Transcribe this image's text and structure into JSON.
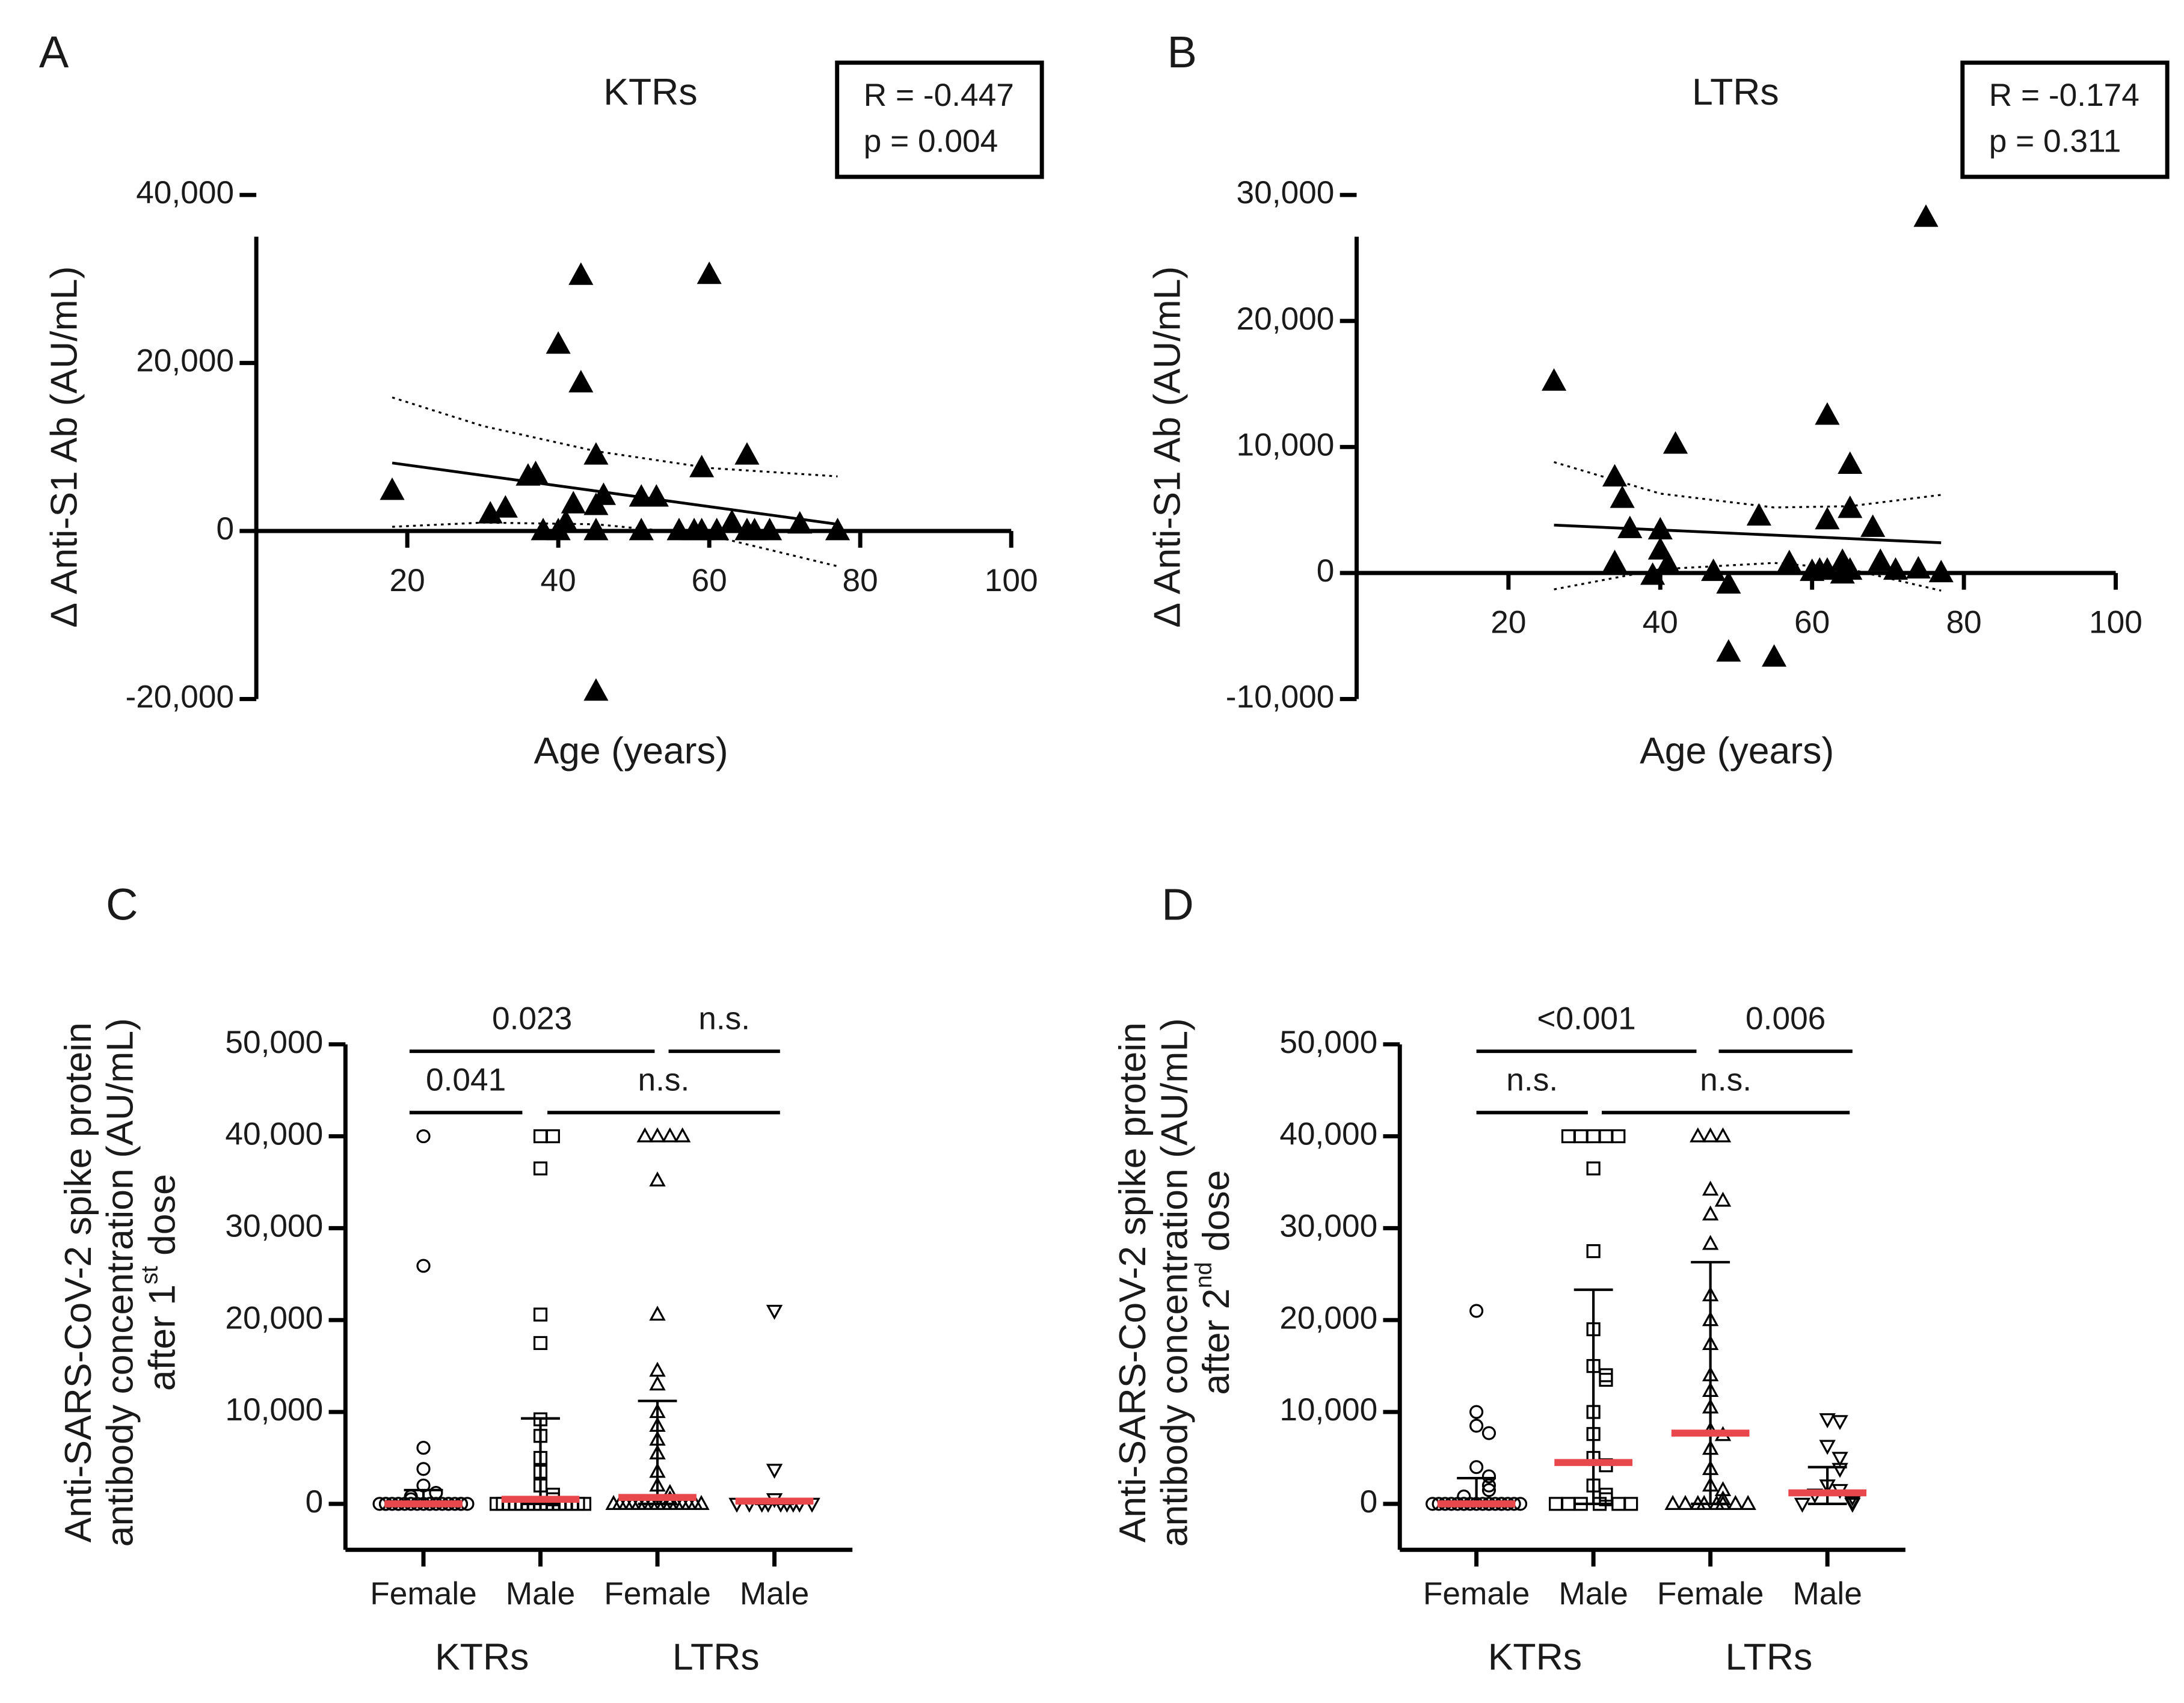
{
  "chart_data": [
    {
      "type": "scatter",
      "panel": "A",
      "title": "KTRs",
      "annotation": [
        "R = -0.447",
        "p = 0.004"
      ],
      "xlabel": "Age (years)",
      "ylabel": "Δ Anti-S1 Ab (AU/mL)",
      "xlim": [
        0,
        100
      ],
      "xticks": [
        20,
        40,
        60,
        80,
        100
      ],
      "ylim": [
        -20000,
        40000
      ],
      "yticks": [
        {
          "value": -20000,
          "label": "-20,000"
        },
        0,
        {
          "value": 20000,
          "label": "20,000"
        },
        {
          "value": 40000,
          "label": "40,000"
        }
      ],
      "color": "#000000",
      "x": [
        18,
        43,
        60,
        40,
        43,
        45,
        65,
        59,
        36,
        37,
        31,
        33,
        42,
        46,
        45,
        51,
        53,
        41,
        40,
        38,
        45,
        51,
        56,
        58,
        59,
        61,
        63,
        65,
        66,
        68,
        72,
        77,
        45
      ],
      "y": [
        4800,
        30400,
        30500,
        22200,
        17600,
        9000,
        9000,
        7500,
        6500,
        6800,
        2000,
        2700,
        3200,
        4200,
        3000,
        4000,
        4000,
        1000,
        0,
        0,
        0,
        0,
        0,
        0,
        0,
        0,
        1000,
        0,
        0,
        0,
        800,
        0,
        -19100
      ],
      "fit_x": [
        18,
        77
      ],
      "fit_y": [
        8100,
        800
      ],
      "ci_x": [
        18,
        30,
        45,
        60,
        77
      ],
      "ci_upper": [
        15900,
        12500,
        9500,
        7500,
        6500
      ],
      "ci_lower": [
        500,
        1000,
        800,
        -500,
        -4200
      ]
    },
    {
      "type": "scatter",
      "panel": "B",
      "title": "LTRs",
      "annotation": [
        "R = -0.174",
        "p = 0.311"
      ],
      "xlabel": "Age (years)",
      "ylabel": "Δ Anti-S1 Ab (AU/mL)",
      "xlim": [
        0,
        100
      ],
      "xticks": [
        20,
        40,
        60,
        80,
        100
      ],
      "ylim": [
        -10000,
        30000
      ],
      "yticks": [
        {
          "value": -10000,
          "label": "-10,000"
        },
        0,
        {
          "value": 10000,
          "label": "10,000"
        },
        {
          "value": 20000,
          "label": "20,000"
        },
        {
          "value": 30000,
          "label": "30,000"
        }
      ],
      "color": "#000000",
      "x": [
        26,
        75,
        62,
        42,
        34,
        35,
        36,
        40,
        65,
        65,
        62,
        53,
        68,
        34,
        40,
        41,
        39,
        47,
        49,
        57,
        60,
        61,
        62,
        64,
        64,
        65,
        69,
        71,
        74,
        77,
        49,
        55
      ],
      "y": [
        15200,
        28200,
        12500,
        10200,
        7600,
        5900,
        3500,
        3400,
        8600,
        5100,
        4200,
        4500,
        3600,
        800,
        1800,
        700,
        -200,
        100,
        -900,
        800,
        100,
        200,
        200,
        900,
        -100,
        200,
        900,
        200,
        300,
        0,
        -6300,
        -6700
      ],
      "fit_x": [
        26,
        77
      ],
      "fit_y": [
        3800,
        2400
      ],
      "ci_x": [
        26,
        40,
        55,
        65,
        77
      ],
      "ci_upper": [
        8800,
        6300,
        5200,
        5300,
        6200
      ],
      "ci_lower": [
        -1300,
        300,
        800,
        300,
        -1400
      ]
    },
    {
      "type": "strip",
      "panel": "C",
      "ylabel": [
        "Anti-SARS-CoV-2 spike protein",
        "antibody concentration (AU/mL)"
      ],
      "ylabel_dose": [
        "after 1",
        "st",
        " dose"
      ],
      "categories": [
        "Female",
        "Male",
        "Female",
        "Male"
      ],
      "groups": [
        "KTRs",
        "LTRs"
      ],
      "comparisons": [
        "0.023",
        "n.s.",
        "0.041",
        "n.s."
      ],
      "ylim": [
        -5000,
        50000
      ],
      "yticks": [
        0,
        {
          "value": 10000,
          "label": "10,000"
        },
        {
          "value": 20000,
          "label": "20,000"
        },
        {
          "value": 30000,
          "label": "30,000"
        },
        {
          "value": 40000,
          "label": "40,000"
        },
        {
          "value": 50000,
          "label": "50,000"
        }
      ],
      "median_color": "#e8474c",
      "series": [
        {
          "marker": "circle",
          "values": [
            40000,
            25900,
            6100,
            3800,
            2000,
            1200,
            800,
            500,
            0,
            0,
            0,
            0,
            0,
            0,
            0,
            0,
            0,
            0,
            0,
            0,
            0,
            0,
            0,
            0,
            0,
            0,
            0,
            0
          ],
          "median": 0,
          "iqr": [
            0,
            1500
          ]
        },
        {
          "marker": "square",
          "values": [
            40000,
            40000,
            36500,
            20600,
            17500,
            9200,
            7400,
            5000,
            3500,
            2000,
            1000,
            500,
            0,
            0,
            0,
            0,
            0,
            0,
            0,
            0,
            0,
            0,
            0,
            0,
            0,
            0,
            0,
            0,
            0
          ],
          "median": 500,
          "iqr": [
            0,
            9300
          ]
        },
        {
          "marker": "triangle",
          "values": [
            40000,
            40000,
            40000,
            40000,
            35200,
            20600,
            14500,
            13000,
            10000,
            8500,
            7000,
            5500,
            3500,
            2000,
            1200,
            500,
            0,
            0,
            0,
            0,
            0,
            0,
            0,
            0,
            0,
            0,
            0,
            0,
            0,
            0,
            0,
            0
          ],
          "median": 700,
          "iqr": [
            0,
            11200
          ]
        },
        {
          "marker": "triangle-down",
          "values": [
            21000,
            3700,
            500,
            0,
            0,
            0,
            0,
            0,
            0,
            0,
            0,
            0
          ],
          "median": 300,
          "iqr": [
            0,
            500
          ]
        }
      ]
    },
    {
      "type": "strip",
      "panel": "D",
      "ylabel": [
        "Anti-SARS-CoV-2 spike protein",
        "antibody concentration (AU/mL)"
      ],
      "ylabel_dose": [
        "after 2",
        "nd",
        " dose"
      ],
      "categories": [
        "Female",
        "Male",
        "Female",
        "Male"
      ],
      "groups": [
        "KTRs",
        "LTRs"
      ],
      "comparisons": [
        "<0.001",
        "0.006",
        "n.s.",
        "n.s."
      ],
      "ylim": [
        -5000,
        50000
      ],
      "yticks": [
        0,
        {
          "value": 10000,
          "label": "10,000"
        },
        {
          "value": 20000,
          "label": "20,000"
        },
        {
          "value": 30000,
          "label": "30,000"
        },
        {
          "value": 40000,
          "label": "40,000"
        },
        {
          "value": 50000,
          "label": "50,000"
        }
      ],
      "median_color": "#e8474c",
      "series": [
        {
          "marker": "circle",
          "values": [
            21000,
            10000,
            8500,
            7700,
            4000,
            3000,
            2000,
            1500,
            800,
            0,
            0,
            0,
            0,
            0,
            0,
            0,
            0,
            0,
            0,
            0,
            0,
            0,
            0,
            0,
            0,
            0,
            0
          ],
          "median": 0,
          "iqr": [
            0,
            2800
          ]
        },
        {
          "marker": "square",
          "values": [
            40000,
            40000,
            40000,
            40000,
            40000,
            36500,
            27500,
            19000,
            15000,
            14000,
            13500,
            10000,
            7600,
            5000,
            4200,
            2000,
            1000,
            500,
            0,
            0,
            0,
            0,
            0,
            0
          ],
          "median": 4500,
          "iqr": [
            0,
            23300
          ]
        },
        {
          "marker": "triangle",
          "values": [
            40000,
            40000,
            40000,
            34200,
            33000,
            31500,
            28300,
            22700,
            20000,
            17400,
            14000,
            12300,
            10500,
            8000,
            7500,
            6000,
            3800,
            2000,
            1500,
            500,
            0,
            0,
            0,
            0,
            0,
            0,
            0,
            0
          ],
          "median": 7700,
          "iqr": [
            0,
            26300
          ]
        },
        {
          "marker": "triangle-down",
          "values": [
            9200,
            9000,
            6300,
            5000,
            3800,
            2000,
            1500,
            1000,
            700,
            200,
            0,
            0
          ],
          "median": 1200,
          "iqr": [
            0,
            4000
          ]
        }
      ]
    }
  ]
}
